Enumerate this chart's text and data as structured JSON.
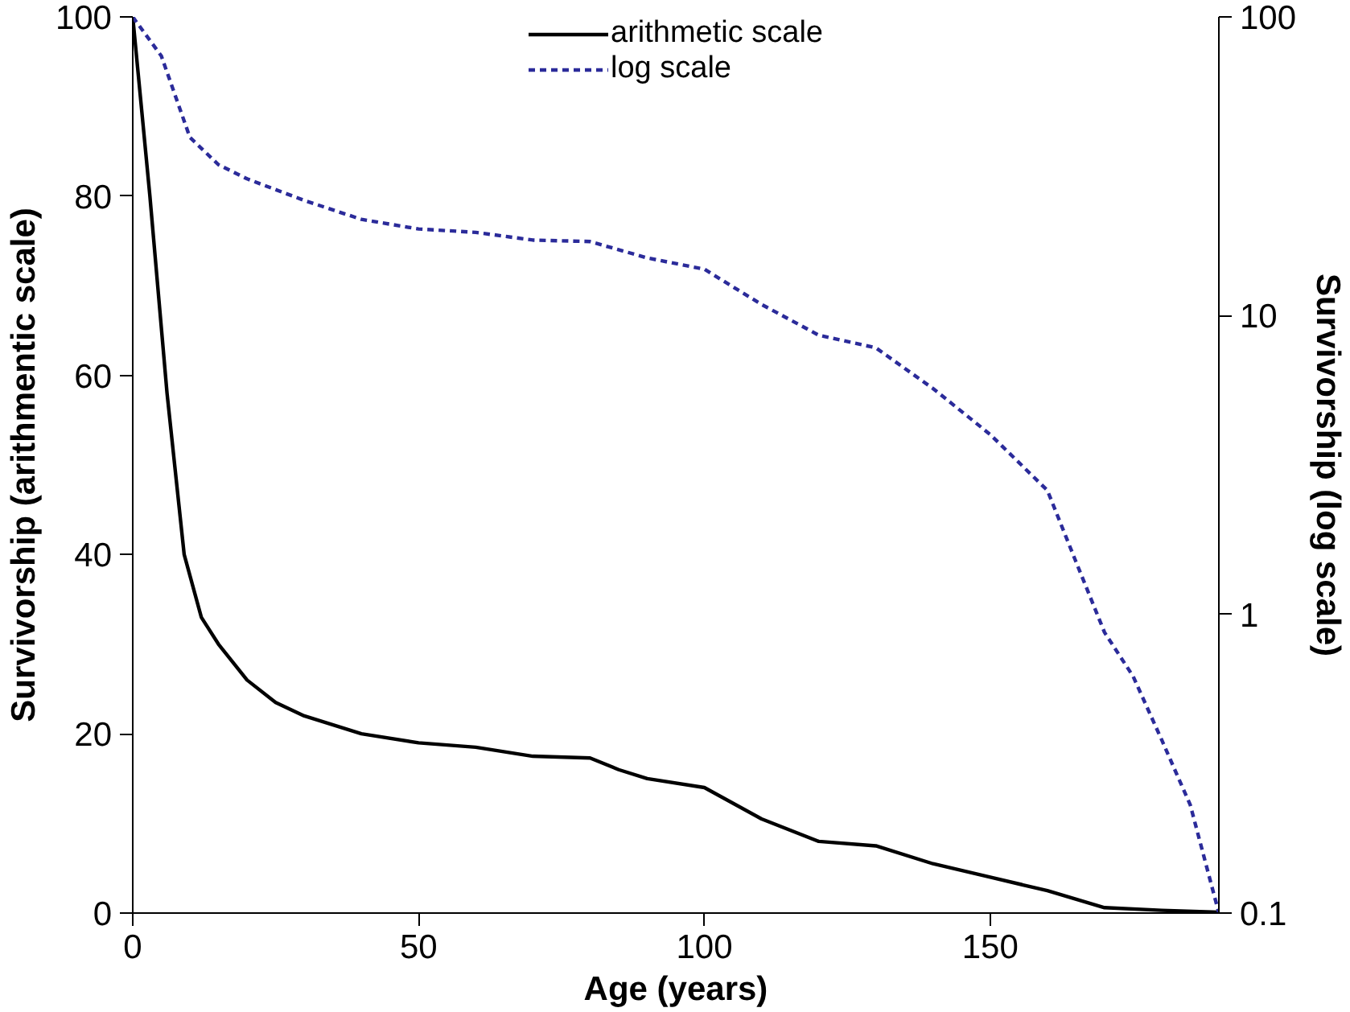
{
  "chart_data": {
    "type": "line",
    "xlabel": "Age (years)",
    "ylabel": "Survivorship (arithmentic scale)",
    "y2label": "Survivorship (log scale)",
    "xlim": [
      0,
      190
    ],
    "xticks": [
      0,
      50,
      100,
      150
    ],
    "ylim": [
      0,
      100
    ],
    "yticks": [
      0,
      20,
      40,
      60,
      80,
      100
    ],
    "y2lim": [
      0.1,
      100
    ],
    "y2ticks": [
      0.1,
      1,
      10,
      100
    ],
    "log": "y2",
    "grid": false,
    "legend": "top",
    "marker": "none",
    "series": [
      {
        "name": "arithmetic scale",
        "color": "#000000",
        "line_style": "solid",
        "x": [
          0,
          3,
          6,
          9,
          12,
          15,
          20,
          25,
          30,
          40,
          50,
          60,
          70,
          80,
          85,
          90,
          100,
          110,
          120,
          130,
          140,
          150,
          160,
          170,
          180,
          190
        ],
        "values": [
          100,
          80,
          58,
          40,
          33,
          30,
          26,
          23.5,
          22,
          20,
          19,
          18.5,
          17.5,
          17.3,
          16,
          15,
          14,
          10.5,
          8,
          7.5,
          5.5,
          4,
          2.5,
          0.6,
          0.3,
          0.1
        ]
      },
      {
        "name": "log scale",
        "color": "#2b2b9a",
        "line_style": "dashed",
        "axis": "y2",
        "x": [
          0,
          5,
          10,
          15,
          20,
          30,
          40,
          50,
          60,
          70,
          80,
          90,
          100,
          110,
          120,
          130,
          140,
          150,
          160,
          165,
          170,
          175,
          180,
          185,
          190
        ],
        "values": [
          100,
          74,
          39.5,
          32,
          28.7,
          24.3,
          21,
          19.5,
          19,
          17.9,
          17.7,
          15.6,
          14.3,
          10.9,
          8.6,
          7.8,
          5.7,
          4,
          2.6,
          1.5,
          0.87,
          0.62,
          0.38,
          0.23,
          0.1
        ]
      }
    ]
  }
}
